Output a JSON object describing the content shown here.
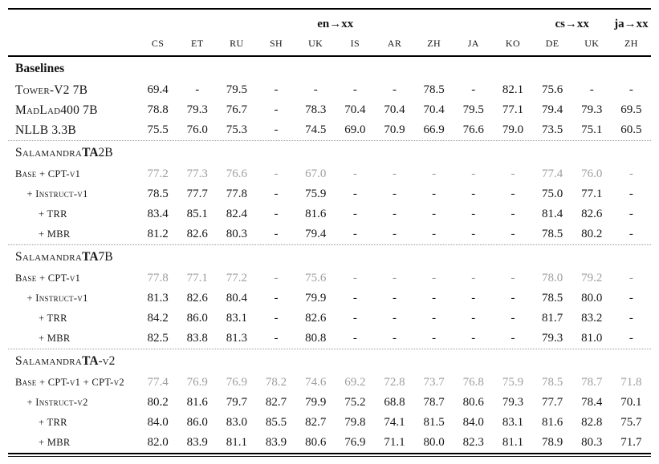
{
  "table": {
    "header": {
      "groups": [
        {
          "label": "en→xx",
          "span": 10
        },
        {
          "label": "cs→xx",
          "span": 2
        },
        {
          "label": "ja→xx",
          "span": 1
        }
      ],
      "columns": [
        "CS",
        "ET",
        "RU",
        "SH",
        "UK",
        "IS",
        "AR",
        "ZH",
        "JA",
        "KO",
        "DE",
        "UK",
        "ZH"
      ]
    },
    "colors": {
      "text": "#161616",
      "muted_value": "#9e9e9e"
    },
    "sections": [
      {
        "title": {
          "plain": "Baselines"
        },
        "divider": false,
        "rows": [
          {
            "label": "Tower-V2 7B",
            "type": "model",
            "indent": 0,
            "muted": false,
            "values": [
              "69.4",
              "-",
              "79.5",
              "-",
              "-",
              "-",
              "-",
              "78.5",
              "-",
              "82.1",
              "75.6",
              "-",
              "-"
            ]
          },
          {
            "label": "MadLad400 7B",
            "type": "model",
            "indent": 0,
            "muted": false,
            "values": [
              "78.8",
              "79.3",
              "76.7",
              "-",
              "78.3",
              "70.4",
              "70.4",
              "70.4",
              "79.5",
              "77.1",
              "79.4",
              "79.3",
              "69.5"
            ]
          },
          {
            "label": "NLLB 3.3B",
            "type": "model",
            "indent": 0,
            "muted": false,
            "values": [
              "75.5",
              "76.0",
              "75.3",
              "-",
              "74.5",
              "69.0",
              "70.9",
              "66.9",
              "76.6",
              "79.0",
              "73.5",
              "75.1",
              "60.5"
            ]
          }
        ]
      },
      {
        "title": {
          "sc": "Salamandra",
          "bold": "TA",
          "suffix": "2B"
        },
        "divider": true,
        "rows": [
          {
            "label": "Base + CPT-v1",
            "type": "sub",
            "indent": 0,
            "muted": true,
            "values": [
              "77.2",
              "77.3",
              "76.6",
              "-",
              "67.0",
              "-",
              "-",
              "-",
              "-",
              "-",
              "77.4",
              "76.0",
              "-"
            ]
          },
          {
            "label": "+ Instruct-v1",
            "type": "sub",
            "indent": 1,
            "muted": false,
            "values": [
              "78.5",
              "77.7",
              "77.8",
              "-",
              "75.9",
              "-",
              "-",
              "-",
              "-",
              "-",
              "75.0",
              "77.1",
              "-"
            ]
          },
          {
            "label": "+ TRR",
            "type": "sub",
            "indent": 2,
            "muted": false,
            "values": [
              "83.4",
              "85.1",
              "82.4",
              "-",
              "81.6",
              "-",
              "-",
              "-",
              "-",
              "-",
              "81.4",
              "82.6",
              "-"
            ]
          },
          {
            "label": "+ MBR",
            "type": "sub",
            "indent": 2,
            "muted": false,
            "values": [
              "81.2",
              "82.6",
              "80.3",
              "-",
              "79.4",
              "-",
              "-",
              "-",
              "-",
              "-",
              "78.5",
              "80.2",
              "-"
            ]
          }
        ]
      },
      {
        "title": {
          "sc": "Salamandra",
          "bold": "TA",
          "suffix": "7B"
        },
        "divider": true,
        "rows": [
          {
            "label": "Base + CPT-v1",
            "type": "sub",
            "indent": 0,
            "muted": true,
            "values": [
              "77.8",
              "77.1",
              "77.2",
              "-",
              "75.6",
              "-",
              "-",
              "-",
              "-",
              "-",
              "78.0",
              "79.2",
              "-"
            ]
          },
          {
            "label": "+ Instruct-v1",
            "type": "sub",
            "indent": 1,
            "muted": false,
            "values": [
              "81.3",
              "82.6",
              "80.4",
              "-",
              "79.9",
              "-",
              "-",
              "-",
              "-",
              "-",
              "78.5",
              "80.0",
              "-"
            ]
          },
          {
            "label": "+ TRR",
            "type": "sub",
            "indent": 2,
            "muted": false,
            "values": [
              "84.2",
              "86.0",
              "83.1",
              "-",
              "82.6",
              "-",
              "-",
              "-",
              "-",
              "-",
              "81.7",
              "83.2",
              "-"
            ]
          },
          {
            "label": "+ MBR",
            "type": "sub",
            "indent": 2,
            "muted": false,
            "values": [
              "82.5",
              "83.8",
              "81.3",
              "-",
              "80.8",
              "-",
              "-",
              "-",
              "-",
              "-",
              "79.3",
              "81.0",
              "-"
            ]
          }
        ]
      },
      {
        "title": {
          "sc": "Salamandra",
          "bold": "TA",
          "suffix": "-v2"
        },
        "divider": true,
        "rows": [
          {
            "label": "Base + CPT-v1 + CPT-v2",
            "type": "sub",
            "indent": 0,
            "muted": true,
            "values": [
              "77.4",
              "76.9",
              "76.9",
              "78.2",
              "74.6",
              "69.2",
              "72.8",
              "73.7",
              "76.8",
              "75.9",
              "78.5",
              "78.7",
              "71.8"
            ]
          },
          {
            "label": "+ Instruct-v2",
            "type": "sub",
            "indent": 1,
            "muted": false,
            "values": [
              "80.2",
              "81.6",
              "79.7",
              "82.7",
              "79.9",
              "75.2",
              "68.8",
              "78.7",
              "80.6",
              "79.3",
              "77.7",
              "78.4",
              "70.1"
            ]
          },
          {
            "label": "+ TRR",
            "type": "sub",
            "indent": 2,
            "muted": false,
            "values": [
              "84.0",
              "86.0",
              "83.0",
              "85.5",
              "82.7",
              "79.8",
              "74.1",
              "81.5",
              "84.0",
              "83.1",
              "81.6",
              "82.8",
              "75.7"
            ]
          },
          {
            "label": "+ MBR",
            "type": "sub",
            "indent": 2,
            "muted": false,
            "values": [
              "82.0",
              "83.9",
              "81.1",
              "83.9",
              "80.6",
              "76.9",
              "71.1",
              "80.0",
              "82.3",
              "81.1",
              "78.9",
              "80.3",
              "71.7"
            ]
          }
        ]
      }
    ]
  }
}
